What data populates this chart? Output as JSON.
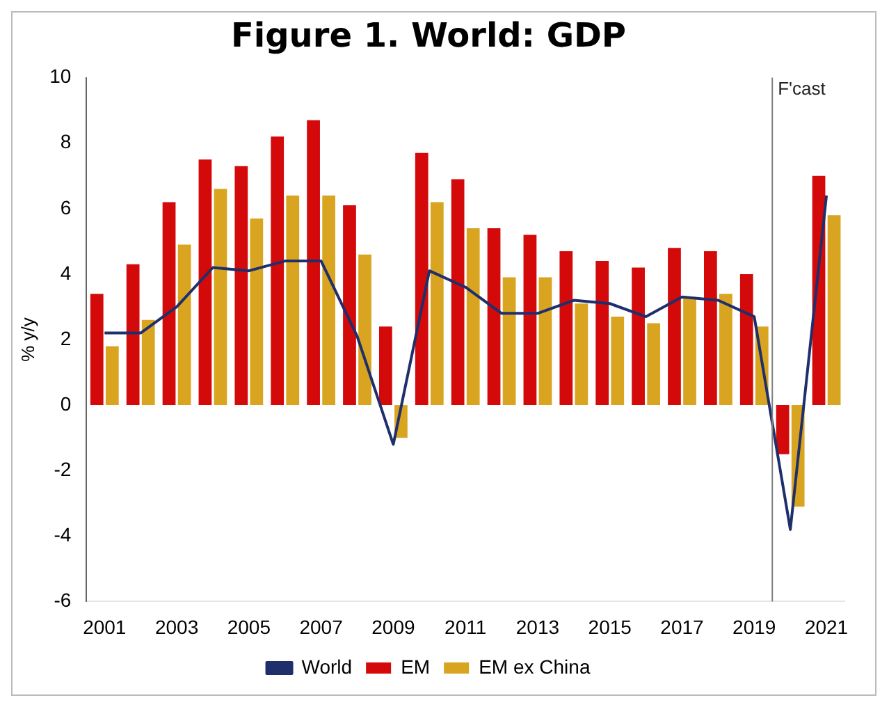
{
  "chart_data": {
    "type": "bar",
    "title": "Figure 1. World: GDP",
    "ylabel": "% y/y",
    "x": [
      2001,
      2002,
      2003,
      2004,
      2005,
      2006,
      2007,
      2008,
      2009,
      2010,
      2011,
      2012,
      2013,
      2014,
      2015,
      2016,
      2017,
      2018,
      2019,
      2020,
      2021
    ],
    "series": [
      {
        "name": "EM",
        "color": "#d40a0a",
        "values": [
          3.4,
          4.3,
          6.2,
          7.5,
          7.3,
          8.2,
          8.7,
          6.1,
          2.4,
          7.7,
          6.9,
          5.4,
          5.2,
          4.7,
          4.4,
          4.2,
          4.8,
          4.7,
          4.0,
          -1.5,
          7.0
        ]
      },
      {
        "name": "EM ex China",
        "color": "#d9a521",
        "values": [
          1.8,
          2.6,
          4.9,
          6.6,
          5.7,
          6.4,
          6.4,
          4.6,
          -1.0,
          6.2,
          5.4,
          3.9,
          3.9,
          3.1,
          2.7,
          2.5,
          3.3,
          3.4,
          2.4,
          -3.1,
          5.8
        ]
      },
      {
        "name": "World",
        "type": "line",
        "color": "#1f2f6b",
        "values": [
          2.2,
          2.2,
          3.0,
          4.2,
          4.1,
          4.4,
          4.4,
          2.1,
          -1.2,
          4.1,
          3.6,
          2.8,
          2.8,
          3.2,
          3.1,
          2.7,
          3.3,
          3.2,
          2.7,
          -3.8,
          6.4
        ]
      }
    ],
    "xlim": [
      2000.5,
      2021.5
    ],
    "xticks": [
      2001,
      2003,
      2005,
      2007,
      2009,
      2011,
      2013,
      2015,
      2017,
      2019,
      2021
    ],
    "ylim": [
      -6,
      10
    ],
    "yticks": [
      -6,
      -4,
      -2,
      0,
      2,
      4,
      6,
      8,
      10
    ],
    "ref_lines": [
      {
        "axis": "x",
        "value": 2019.5,
        "label": "F'cast",
        "color": "#808080"
      }
    ],
    "grid": false,
    "legend": "bottom",
    "marker": "none",
    "line_style": "solid"
  }
}
